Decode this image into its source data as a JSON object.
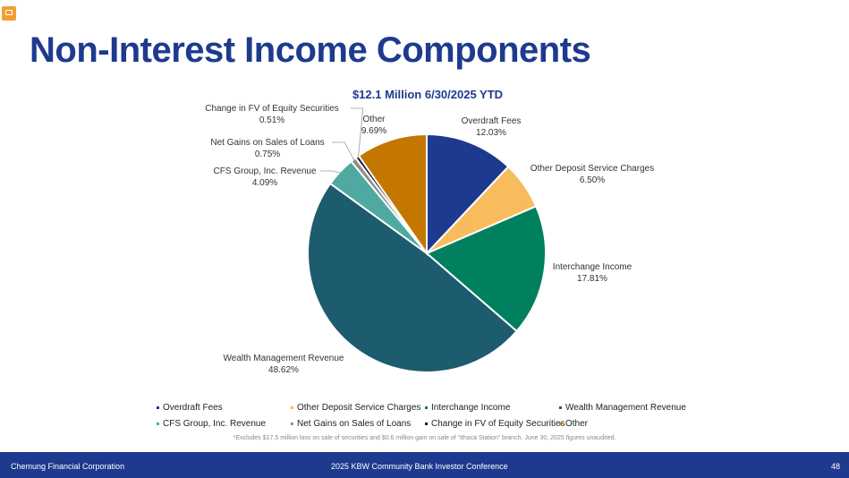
{
  "page": {
    "title": "Non-Interest Income Components",
    "footnote": "*Excludes $17.5 million loss on sale of securities and $0.6 million gain on sale of “Ithaca Station” branch.  June 30, 2025 figures unaudited.",
    "footer": {
      "company": "Chemung Financial Corporation",
      "event": "2025 KBW Community Bank Investor Conference",
      "page_number": "48"
    },
    "corner_icon": "comment-icon"
  },
  "chart_data": {
    "type": "pie",
    "title": "$12.1 Million 6/30/2025 YTD",
    "legend_placement": "bottom",
    "slices": [
      {
        "name": "Overdraft Fees",
        "value": 12.03,
        "label": "12.03%",
        "color": "#1e3a8f"
      },
      {
        "name": "Other Deposit Service Charges",
        "value": 6.5,
        "label": "6.50%",
        "color": "#f9bc5c"
      },
      {
        "name": "Interchange Income",
        "value": 17.81,
        "label": "17.81%",
        "color": "#00805e"
      },
      {
        "name": "Wealth Management Revenue",
        "value": 48.62,
        "label": "48.62%",
        "color": "#1d5b6e"
      },
      {
        "name": "CFS Group, Inc. Revenue",
        "value": 4.09,
        "label": "4.09%",
        "color": "#4fa9a0"
      },
      {
        "name": "Net Gains on Sales of Loans",
        "value": 0.75,
        "label": "0.75%",
        "color": "#8e8e8e"
      },
      {
        "name": "Change in FV of Equity Securities",
        "value": 0.51,
        "label": "0.51%",
        "color": "#1b1b3a"
      },
      {
        "name": "Other",
        "value": 9.69,
        "label": "9.69%",
        "color": "#c47700"
      }
    ]
  }
}
